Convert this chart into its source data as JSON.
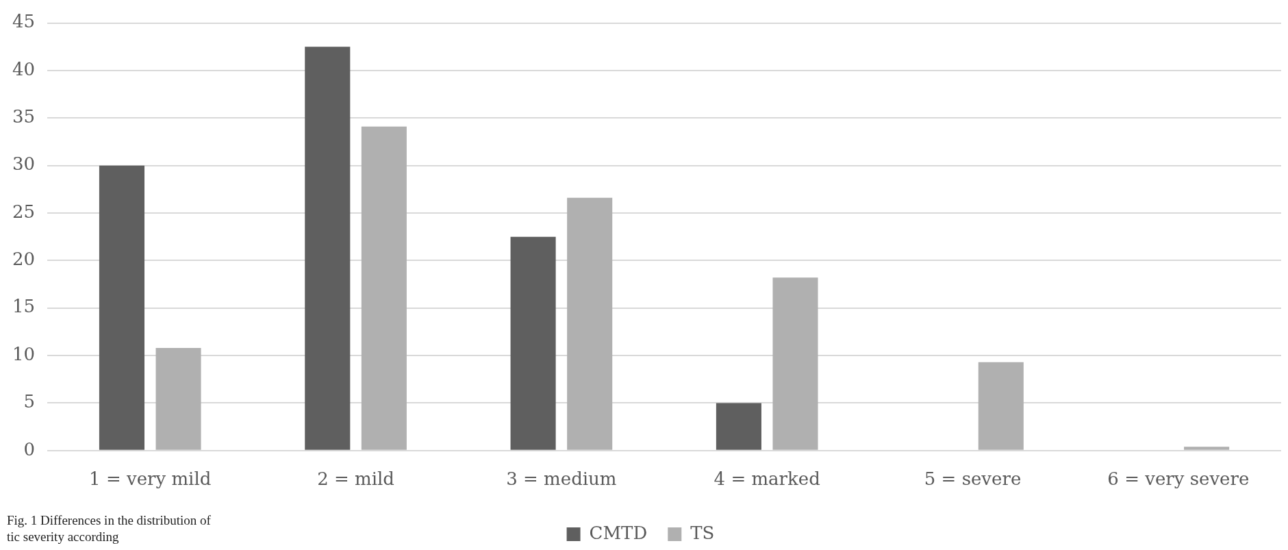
{
  "chart_data": {
    "type": "bar",
    "categories": [
      "1 = very mild",
      "2 = mild",
      "3 = medium",
      "4 = marked",
      "5 = severe",
      "6 = very severe"
    ],
    "series": [
      {
        "name": "CMTD",
        "color": "#5f5f5f",
        "values": [
          30,
          42.5,
          22.5,
          5,
          0,
          0
        ]
      },
      {
        "name": "TS",
        "color": "#b0b0b0",
        "values": [
          10.8,
          34.1,
          26.6,
          18.2,
          9.3,
          0.4
        ]
      }
    ],
    "ylim": [
      0,
      45
    ],
    "yticks": [
      0,
      5,
      10,
      15,
      20,
      25,
      30,
      35,
      40,
      45
    ],
    "grid": "y",
    "legend": "bottom",
    "annotations": [
      "Fig. 1 Differences in the distribution of tic severity according"
    ]
  }
}
